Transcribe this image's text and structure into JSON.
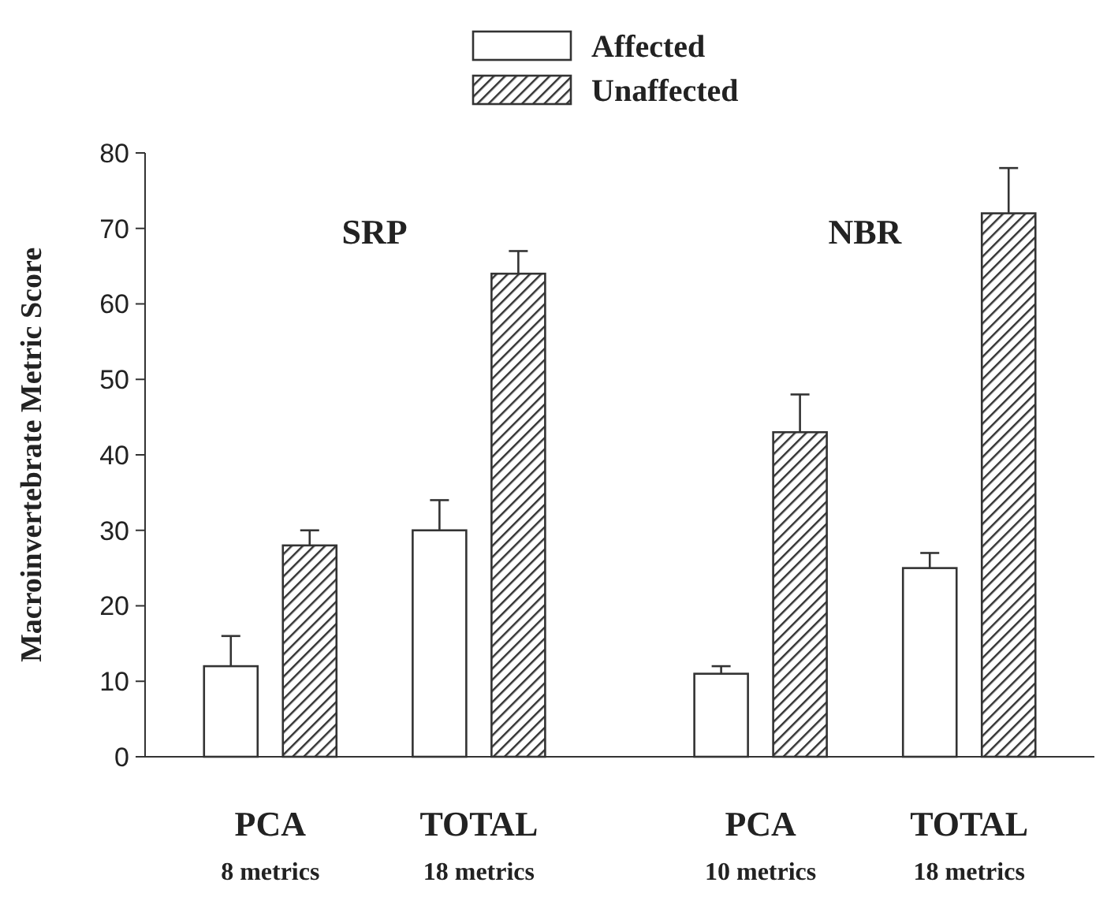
{
  "chart_data": {
    "type": "bar",
    "ylabel": "Macroinvertebrate Metric Score",
    "categories": [
      "PCA\n8 metrics",
      "TOTAL\n18 metrics",
      "PCA\n10 metrics",
      "TOTAL\n18 metrics"
    ],
    "series": [
      {
        "name": "Affected",
        "color": "#ffffff",
        "values": [
          12,
          30,
          11,
          25
        ],
        "errors": [
          [
            12,
            16
          ],
          [
            30,
            34
          ],
          [
            11,
            12
          ],
          [
            25,
            27
          ]
        ]
      },
      {
        "name": "Unaffected",
        "color": "#333333",
        "values": [
          28,
          64,
          43,
          72
        ],
        "errors": [
          [
            28,
            30
          ],
          [
            64,
            67
          ],
          [
            43,
            48
          ],
          [
            72,
            78
          ]
        ]
      }
    ],
    "ylim": [
      0,
      80
    ],
    "yticks": [
      0,
      10,
      20,
      30,
      40,
      50,
      60,
      70,
      80
    ],
    "grid": false,
    "legend": "top",
    "annotations": [
      "SRP",
      "NBR"
    ]
  }
}
